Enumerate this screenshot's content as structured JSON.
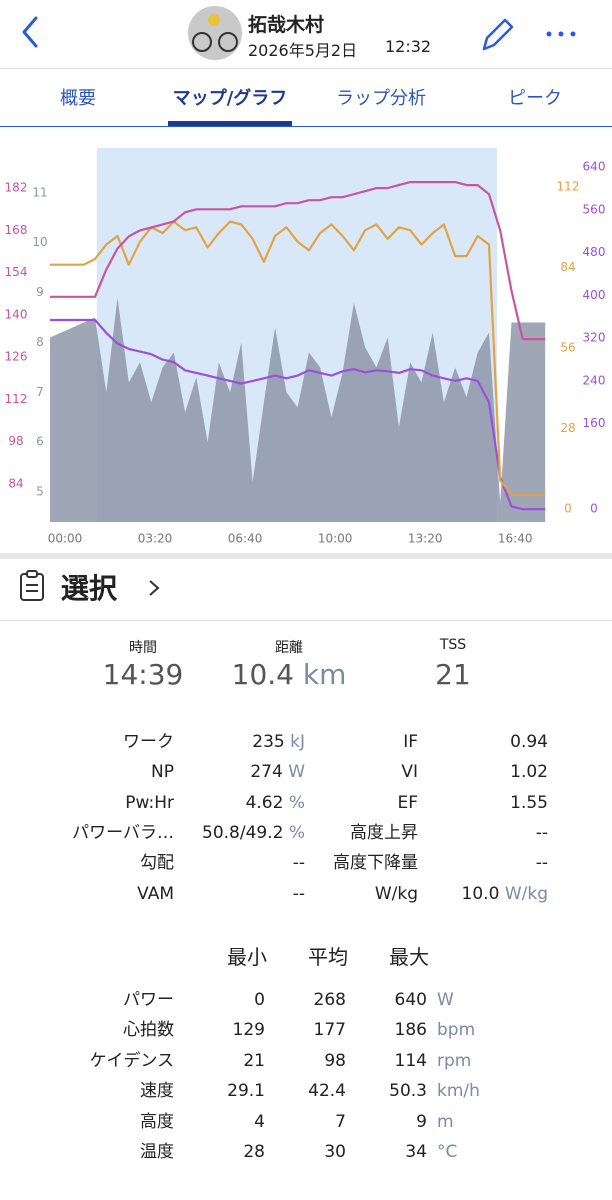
{
  "header": {
    "name": "拓哉木村",
    "date": "2026年5月2日",
    "time": "12:32"
  },
  "tabs": {
    "items": [
      "概要",
      "マップ/グラフ",
      "ラップ分析",
      "ピーク"
    ],
    "active": 1
  },
  "chart_data": {
    "type": "line",
    "x": [
      0,
      25,
      50,
      75,
      100,
      125,
      150,
      175,
      200,
      225,
      250,
      275,
      300,
      325,
      350,
      375,
      400,
      425,
      450,
      475,
      500,
      525,
      550,
      575,
      600,
      625,
      650,
      675,
      700,
      725,
      750,
      775,
      800,
      825,
      850,
      875,
      900,
      925,
      950,
      975,
      1000,
      1025,
      1050,
      1075,
      1100
    ],
    "xlim": [
      0,
      1115
    ],
    "xticks": [
      {
        "value": 0,
        "label": "00:00"
      },
      {
        "value": 200,
        "label": "03:20"
      },
      {
        "value": 400,
        "label": "06:40"
      },
      {
        "value": 600,
        "label": "10:00"
      },
      {
        "value": 800,
        "label": "13:20"
      },
      {
        "value": 1000,
        "label": "16:40"
      }
    ],
    "selection": [
      104,
      993
    ],
    "series": [
      {
        "kind": "area",
        "side": "left-inner",
        "color": "#8e97a9",
        "ylim": [
          4.4,
          11.9
        ],
        "yticks": [
          5,
          6,
          7,
          8,
          9,
          10,
          11
        ],
        "values": [
          8.1,
          8.2,
          8.3,
          8.4,
          8.5,
          7.0,
          8.9,
          7.2,
          7.6,
          6.8,
          7.5,
          7.8,
          6.6,
          7.3,
          6.0,
          7.6,
          7.0,
          8.0,
          5.2,
          6.8,
          8.3,
          7.0,
          6.7,
          7.8,
          7.5,
          6.5,
          7.4,
          8.8,
          7.9,
          7.5,
          8.1,
          6.3,
          7.6,
          7.2,
          8.2,
          6.8,
          7.5,
          6.9,
          7.8,
          8.2,
          4.8,
          8.4,
          8.4,
          8.4,
          8.4
        ]
      },
      {
        "kind": "line",
        "side": "right-outer",
        "color": "#9b50d8",
        "ylim": [
          -24,
          676
        ],
        "yticks": [
          0,
          160,
          240,
          320,
          400,
          480,
          560,
          640
        ],
        "values": [
          354,
          354,
          354,
          354,
          354,
          330,
          310,
          300,
          295,
          290,
          280,
          275,
          260,
          255,
          250,
          245,
          240,
          235,
          240,
          245,
          250,
          245,
          250,
          260,
          255,
          250,
          258,
          262,
          256,
          260,
          258,
          255,
          262,
          260,
          250,
          245,
          240,
          245,
          240,
          200,
          60,
          5,
          0,
          0,
          0
        ]
      },
      {
        "kind": "line",
        "side": "right-inner",
        "color": "#e2a346",
        "ylim": [
          -4.5,
          125.6
        ],
        "yticks": [
          0,
          28,
          56,
          84,
          112
        ],
        "values": [
          85,
          85,
          85,
          85,
          87,
          92,
          95,
          85,
          93,
          98,
          96,
          100,
          97,
          98,
          91,
          96,
          100,
          99,
          94,
          86,
          95,
          98,
          93,
          90,
          96,
          99,
          95,
          90,
          97,
          99,
          94,
          98,
          97,
          92,
          96,
          99,
          88,
          88,
          95,
          92,
          10,
          5,
          5,
          5,
          5
        ]
      },
      {
        "kind": "line",
        "side": "left-outer",
        "color": "#c9569a",
        "ylim": [
          71.4,
          195.3
        ],
        "yticks": [
          84,
          98,
          112,
          126,
          140,
          154,
          168,
          182
        ],
        "values": [
          146,
          146,
          146,
          146,
          146,
          155,
          162,
          166,
          168,
          169,
          170,
          171,
          174,
          175,
          175,
          175,
          175,
          176,
          176,
          176,
          176,
          177,
          177,
          178,
          178,
          179,
          179,
          180,
          181,
          182,
          182,
          183,
          184,
          184,
          184,
          184,
          184,
          183,
          183,
          180,
          168,
          148,
          132,
          132,
          132
        ]
      }
    ]
  },
  "section": {
    "title": "選択"
  },
  "summary": [
    {
      "label": "時間",
      "value": "14:39"
    },
    {
      "label": "距離",
      "value": "10.4",
      "unit": "km"
    },
    {
      "label": "TSS",
      "value": "21"
    }
  ],
  "metrics": [
    {
      "left": {
        "label": "ワーク",
        "value": "235",
        "unit": "kJ"
      },
      "right": {
        "label": "IF",
        "value": "0.94"
      }
    },
    {
      "left": {
        "label": "NP",
        "value": "274",
        "unit": "W"
      },
      "right": {
        "label": "VI",
        "value": "1.02"
      }
    },
    {
      "left": {
        "label": "Pw:Hr",
        "value": "4.62",
        "unit": "%"
      },
      "right": {
        "label": "EF",
        "value": "1.55"
      }
    },
    {
      "left": {
        "label": "パワーバラ…",
        "value": "50.8/49.2",
        "unit": "%"
      },
      "right": {
        "label": "高度上昇",
        "value": "--"
      }
    },
    {
      "left": {
        "label": "勾配",
        "value": "--"
      },
      "right": {
        "label": "高度下降量",
        "value": "--"
      }
    },
    {
      "left": {
        "label": "VAM",
        "value": "--"
      },
      "right": {
        "label": "W/kg",
        "value": "10.0",
        "unit": "W/kg"
      }
    }
  ],
  "stats": {
    "headers": [
      "最小",
      "平均",
      "最大"
    ],
    "rows": [
      {
        "label": "パワー",
        "min": "0",
        "avg": "268",
        "max": "640",
        "unit": "W"
      },
      {
        "label": "心拍数",
        "min": "129",
        "avg": "177",
        "max": "186",
        "unit": "bpm"
      },
      {
        "label": "ケイデンス",
        "min": "21",
        "avg": "98",
        "max": "114",
        "unit": "rpm"
      },
      {
        "label": "速度",
        "min": "29.1",
        "avg": "42.4",
        "max": "50.3",
        "unit": "km/h"
      },
      {
        "label": "高度",
        "min": "4",
        "avg": "7",
        "max": "9",
        "unit": "m"
      },
      {
        "label": "温度",
        "min": "28",
        "avg": "30",
        "max": "34",
        "unit": "°C"
      }
    ]
  }
}
